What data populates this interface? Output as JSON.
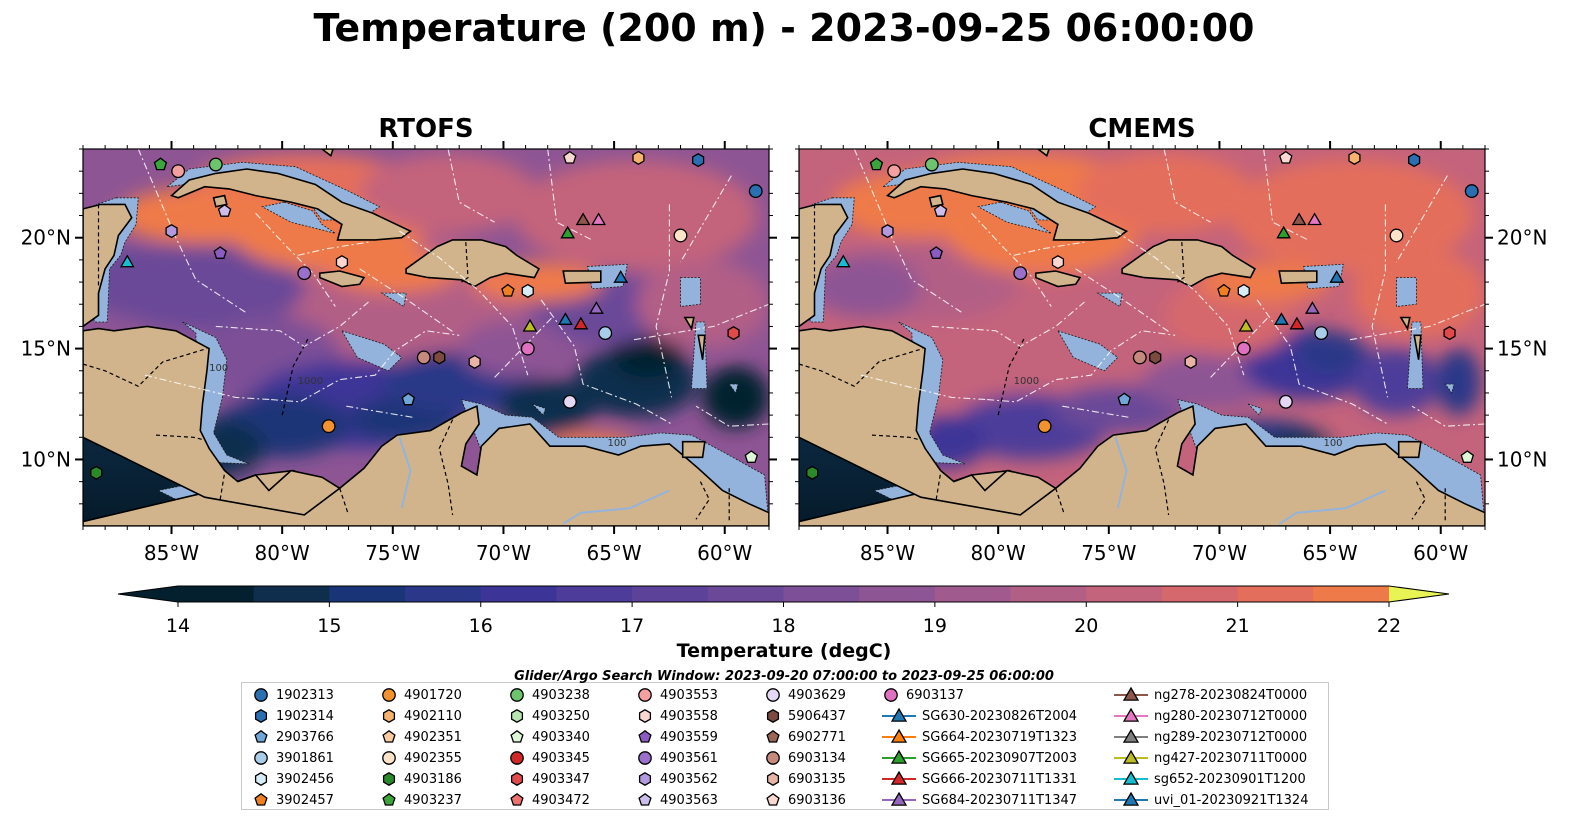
{
  "figure": {
    "title": "Temperature (200 m) - 2023-09-25 06:00:00",
    "search_window": "Glider/Argo Search Window: 2023-09-20 07:00:00 to 2023-09-25 06:00:00"
  },
  "chart_data": [
    {
      "type": "heatmap",
      "title": "RTOFS",
      "xlabel": "",
      "ylabel": "",
      "xlim": [
        -89,
        -58
      ],
      "ylim": [
        7,
        24
      ],
      "x_ticks": [
        "85°W",
        "80°W",
        "75°W",
        "70°W",
        "65°W",
        "60°W"
      ],
      "y_ticks": [
        "10°N",
        "15°N",
        "20°N"
      ],
      "contour_labels": [
        "1000",
        "100",
        "100"
      ]
    },
    {
      "type": "heatmap",
      "title": "CMEMS",
      "xlabel": "",
      "ylabel": "",
      "xlim": [
        -89,
        -58
      ],
      "ylim": [
        7,
        24
      ],
      "x_ticks": [
        "85°W",
        "80°W",
        "75°W",
        "70°W",
        "65°W",
        "60°W"
      ],
      "y_ticks": [
        "10°N",
        "15°N",
        "20°N"
      ],
      "contour_labels": [
        "1000",
        "100"
      ]
    }
  ],
  "colorbar": {
    "label": "Temperature (degC)",
    "min": 14,
    "max": 22,
    "step": 0.5,
    "ticks": [
      "14",
      "15",
      "16",
      "17",
      "18",
      "19",
      "20",
      "21",
      "22"
    ],
    "colors": [
      "#04202e",
      "#0f2d4d",
      "#1a3577",
      "#2b3788",
      "#3c3597",
      "#4d3c9a",
      "#5c4399",
      "#6b4898",
      "#7d4f97",
      "#8e5594",
      "#a05a8e",
      "#b25f86",
      "#c4637c",
      "#d5686d",
      "#e46e5c",
      "#ef7a49",
      "#f58c39",
      "#f8a233",
      "#f9bb3a",
      "#f3d24a",
      "#e8f354"
    ],
    "land_color": "#d2b48c",
    "shelf_color": "#93b3dc"
  },
  "legend": {
    "columns": [
      [
        {
          "label": "1902313",
          "marker": "circle",
          "color": "#2b6fb3"
        },
        {
          "label": "1902314",
          "marker": "hexagon",
          "color": "#2b6fb3"
        },
        {
          "label": "2903766",
          "marker": "pentagon",
          "color": "#6fa6d6"
        },
        {
          "label": "3901861",
          "marker": "circle",
          "color": "#a9cce9"
        },
        {
          "label": "3902456",
          "marker": "hexagon",
          "color": "#d8ecf8"
        },
        {
          "label": "3902457",
          "marker": "pentagon",
          "color": "#f0801f"
        }
      ],
      [
        {
          "label": "4901720",
          "marker": "circle",
          "color": "#f2922f"
        },
        {
          "label": "4902110",
          "marker": "hexagon",
          "color": "#f7b26e"
        },
        {
          "label": "4902351",
          "marker": "pentagon",
          "color": "#f9cca0"
        },
        {
          "label": "4902355",
          "marker": "circle",
          "color": "#fde4c8"
        },
        {
          "label": "4903186",
          "marker": "hexagon",
          "color": "#2a8a2a"
        },
        {
          "label": "4903237",
          "marker": "pentagon",
          "color": "#3aa53a"
        }
      ],
      [
        {
          "label": "4903238",
          "marker": "circle",
          "color": "#6cc46c"
        },
        {
          "label": "4903250",
          "marker": "hexagon",
          "color": "#b7e6b0"
        },
        {
          "label": "4903340",
          "marker": "pentagon",
          "color": "#def5d8"
        },
        {
          "label": "4903345",
          "marker": "circle",
          "color": "#d02828"
        },
        {
          "label": "4903347",
          "marker": "hexagon",
          "color": "#e04a4a"
        },
        {
          "label": "4903472",
          "marker": "pentagon",
          "color": "#f07070"
        }
      ],
      [
        {
          "label": "4903553",
          "marker": "circle",
          "color": "#f5a0a0"
        },
        {
          "label": "4903558",
          "marker": "hexagon",
          "color": "#fcd7d2"
        },
        {
          "label": "4903559",
          "marker": "pentagon",
          "color": "#8a5cc2"
        },
        {
          "label": "4903561",
          "marker": "circle",
          "color": "#9a70cc"
        },
        {
          "label": "4903562",
          "marker": "hexagon",
          "color": "#b39ae0"
        },
        {
          "label": "4903563",
          "marker": "pentagon",
          "color": "#ccbdea"
        }
      ],
      [
        {
          "label": "4903629",
          "marker": "circle",
          "color": "#e4d8f5"
        },
        {
          "label": "5906437",
          "marker": "hexagon",
          "color": "#7a4b3e"
        },
        {
          "label": "6902771",
          "marker": "pentagon",
          "color": "#9a6657"
        },
        {
          "label": "6903134",
          "marker": "circle",
          "color": "#c68a7c"
        },
        {
          "label": "6903135",
          "marker": "hexagon",
          "color": "#e9b4a6"
        },
        {
          "label": "6903136",
          "marker": "pentagon",
          "color": "#f8d8d0"
        }
      ],
      [
        {
          "label": "6903137",
          "marker": "circle",
          "color": "#e070c0"
        },
        {
          "label": "SG630-20230826T2004",
          "marker": "triangle-line",
          "color": "#1f77b4"
        },
        {
          "label": "SG664-20230719T1323",
          "marker": "triangle-line",
          "color": "#ff7f0e"
        },
        {
          "label": "SG665-20230907T2003",
          "marker": "triangle-line",
          "color": "#2ca02c"
        },
        {
          "label": "SG666-20230711T1331",
          "marker": "triangle-line",
          "color": "#d62728"
        },
        {
          "label": "SG684-20230711T1347",
          "marker": "triangle-line",
          "color": "#9467bd"
        }
      ],
      [
        {
          "label": "ng278-20230824T0000",
          "marker": "triangle-line",
          "color": "#8c564b"
        },
        {
          "label": "ng280-20230712T0000",
          "marker": "triangle-line",
          "color": "#e377c2"
        },
        {
          "label": "ng289-20230712T0000",
          "marker": "triangle-line",
          "color": "#7f7f7f"
        },
        {
          "label": "ng427-20230711T0000",
          "marker": "triangle-line",
          "color": "#bcbd22"
        },
        {
          "label": "sg652-20230901T1200",
          "marker": "triangle-line",
          "color": "#17becf"
        },
        {
          "label": "uvi_01-20230921T1324",
          "marker": "triangle-line",
          "color": "#1f77b4"
        }
      ]
    ]
  },
  "observations": [
    {
      "id": "1902313",
      "marker": "circle",
      "color": "#2b6fb3",
      "lon": -58.6,
      "lat": 22.1
    },
    {
      "id": "1902314",
      "marker": "hexagon",
      "color": "#2b6fb3",
      "lon": -61.2,
      "lat": 23.5
    },
    {
      "id": "2903766",
      "marker": "pentagon",
      "color": "#6fa6d6",
      "lon": -74.3,
      "lat": 12.7
    },
    {
      "id": "3901861",
      "marker": "circle",
      "color": "#a9cce9",
      "lon": -65.4,
      "lat": 15.7
    },
    {
      "id": "3902456",
      "marker": "hexagon",
      "color": "#d8ecf8",
      "lon": -68.9,
      "lat": 17.6
    },
    {
      "id": "3902457",
      "marker": "pentagon",
      "color": "#f0801f",
      "lon": -69.8,
      "lat": 17.6
    },
    {
      "id": "4901720",
      "marker": "circle",
      "color": "#f2922f",
      "lon": -77.9,
      "lat": 11.5
    },
    {
      "id": "4902110",
      "marker": "hexagon",
      "color": "#f7b26e",
      "lon": -63.9,
      "lat": 23.6
    },
    {
      "id": "4902355",
      "marker": "circle",
      "color": "#fde4c8",
      "lon": -62.0,
      "lat": 20.1
    },
    {
      "id": "4903186",
      "marker": "hexagon",
      "color": "#2a8a2a",
      "lon": -88.4,
      "lat": 9.4
    },
    {
      "id": "4903237",
      "marker": "pentagon",
      "color": "#3aa53a",
      "lon": -85.5,
      "lat": 23.3
    },
    {
      "id": "4903238",
      "marker": "circle",
      "color": "#6cc46c",
      "lon": -83.0,
      "lat": 23.3
    },
    {
      "id": "4903340",
      "marker": "pentagon",
      "color": "#def5d8",
      "lon": -58.8,
      "lat": 10.1
    },
    {
      "id": "4903347",
      "marker": "hexagon",
      "color": "#e04a4a",
      "lon": -59.6,
      "lat": 15.7
    },
    {
      "id": "4903553",
      "marker": "circle",
      "color": "#f5a0a0",
      "lon": -84.7,
      "lat": 23.0
    },
    {
      "id": "4903558",
      "marker": "hexagon",
      "color": "#fcd7d2",
      "lon": -77.3,
      "lat": 18.9
    },
    {
      "id": "4903559",
      "marker": "pentagon",
      "color": "#8a5cc2",
      "lon": -82.8,
      "lat": 19.3
    },
    {
      "id": "4903561",
      "marker": "circle",
      "color": "#9a70cc",
      "lon": -79.0,
      "lat": 18.4
    },
    {
      "id": "4903562",
      "marker": "hexagon",
      "color": "#b39ae0",
      "lon": -85.0,
      "lat": 20.3
    },
    {
      "id": "4903563",
      "marker": "pentagon",
      "color": "#ccbdea",
      "lon": -82.6,
      "lat": 21.2
    },
    {
      "id": "4903629",
      "marker": "circle",
      "color": "#e4d8f5",
      "lon": -67.0,
      "lat": 12.6
    },
    {
      "id": "5906437",
      "marker": "hexagon",
      "color": "#7a4b3e",
      "lon": -72.9,
      "lat": 14.6
    },
    {
      "id": "6903134",
      "marker": "circle",
      "color": "#c68a7c",
      "lon": -73.6,
      "lat": 14.6
    },
    {
      "id": "6903135",
      "marker": "hexagon",
      "color": "#e9b4a6",
      "lon": -71.3,
      "lat": 14.4
    },
    {
      "id": "6903136",
      "marker": "pentagon",
      "color": "#f8d8d0",
      "lon": -67.0,
      "lat": 23.6
    },
    {
      "id": "6903137",
      "marker": "circle",
      "color": "#e070c0",
      "lon": -68.9,
      "lat": 15.0
    },
    {
      "id": "SG630-20230826T2004",
      "marker": "triangle",
      "color": "#1f77b4",
      "lon": -64.7,
      "lat": 18.2
    },
    {
      "id": "SG665-20230907T2003",
      "marker": "triangle",
      "color": "#2ca02c",
      "lon": -67.1,
      "lat": 20.2
    },
    {
      "id": "SG666-20230711T1331",
      "marker": "triangle",
      "color": "#d62728",
      "lon": -66.5,
      "lat": 16.1
    },
    {
      "id": "SG684-20230711T1347",
      "marker": "triangle",
      "color": "#9467bd",
      "lon": -65.8,
      "lat": 16.8
    },
    {
      "id": "ng278-20230824T0000",
      "marker": "triangle",
      "color": "#8c564b",
      "lon": -66.4,
      "lat": 20.8
    },
    {
      "id": "ng280-20230712T0000",
      "marker": "triangle",
      "color": "#e377c2",
      "lon": -65.7,
      "lat": 20.8
    },
    {
      "id": "ng427-20230711T0000",
      "marker": "triangle",
      "color": "#bcbd22",
      "lon": -68.8,
      "lat": 16.0
    },
    {
      "id": "sg652-20230901T1200",
      "marker": "triangle",
      "color": "#17becf",
      "lon": -87.0,
      "lat": 18.9
    },
    {
      "id": "uvi_01-20230921T1324",
      "marker": "triangle",
      "color": "#1f77b4",
      "lon": -67.2,
      "lat": 16.3
    }
  ]
}
